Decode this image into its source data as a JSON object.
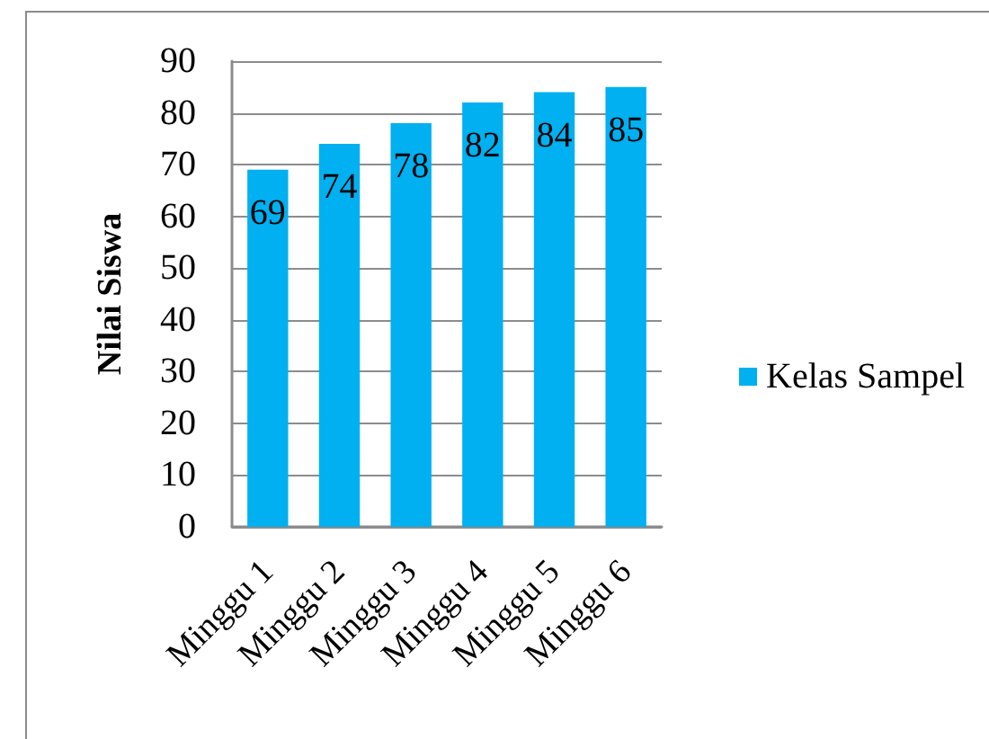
{
  "chart_data": {
    "type": "bar",
    "ylabel": "Nilai Siswa",
    "categories": [
      "Minggu 1",
      "Minggu 2",
      "Minggu 3",
      "Minggu 4",
      "Minggu 5",
      "Minggu 6"
    ],
    "series": [
      {
        "name": "Kelas Sampel",
        "color": "#00b0f0",
        "values": [
          69,
          74,
          78,
          82,
          84,
          85
        ]
      }
    ],
    "ylim": [
      0,
      90
    ],
    "yticks": [
      0,
      10,
      20,
      30,
      40,
      50,
      60,
      70,
      80,
      90
    ],
    "grid": "y",
    "legend": "right",
    "data_labels": true
  }
}
